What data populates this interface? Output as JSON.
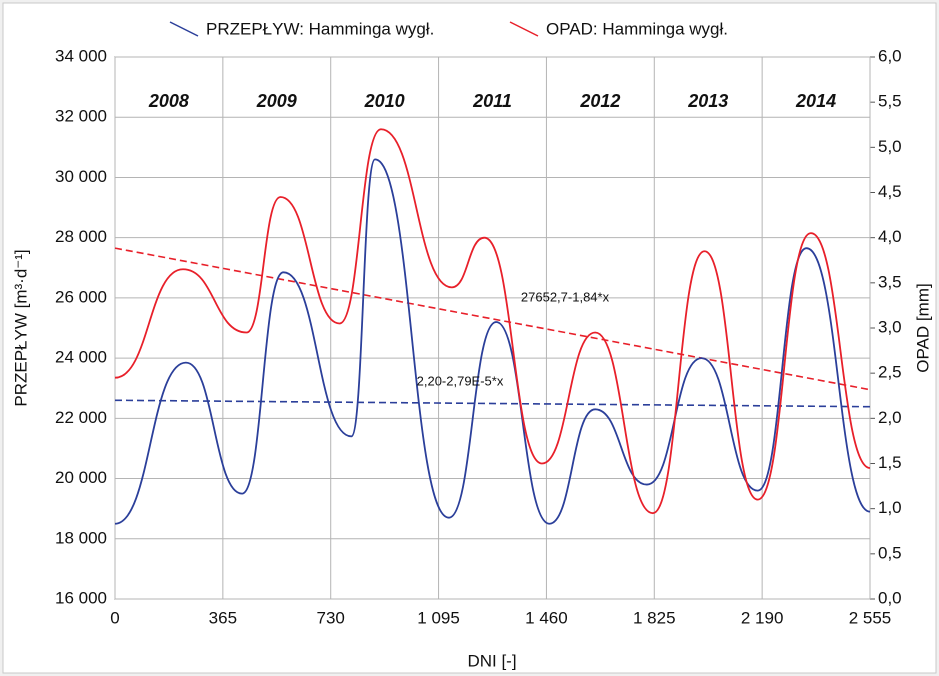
{
  "chart_data": {
    "type": "line",
    "xlabel": "DNI [-]",
    "ylabel": "PRZEPŁYW [m³·d⁻¹]",
    "y2label": "OPAD [mm]",
    "xlim": [
      0,
      2555
    ],
    "xticks": [
      0,
      365,
      730,
      {
        "value": 1095,
        "label": "1 095"
      },
      {
        "value": 1460,
        "label": "1 460"
      },
      {
        "value": 1825,
        "label": "1 825"
      },
      {
        "value": 2190,
        "label": "2 190"
      },
      {
        "value": 2555,
        "label": "2 555"
      }
    ],
    "ylim": [
      16000,
      34000
    ],
    "yticks": [
      {
        "value": 16000,
        "label": "16 000"
      },
      {
        "value": 18000,
        "label": "18 000"
      },
      {
        "value": 20000,
        "label": "20 000"
      },
      {
        "value": 22000,
        "label": "22 000"
      },
      {
        "value": 24000,
        "label": "24 000"
      },
      {
        "value": 26000,
        "label": "26 000"
      },
      {
        "value": 28000,
        "label": "28 000"
      },
      {
        "value": 30000,
        "label": "30 000"
      },
      {
        "value": 32000,
        "label": "32 000"
      },
      {
        "value": 34000,
        "label": "34 000"
      }
    ],
    "y2lim": [
      0,
      6
    ],
    "y2ticks": [
      {
        "value": 0,
        "label": "0,0"
      },
      {
        "value": 0.5,
        "label": "0,5"
      },
      {
        "value": 1,
        "label": "1,0"
      },
      {
        "value": 1.5,
        "label": "1,5"
      },
      {
        "value": 2,
        "label": "2,0"
      },
      {
        "value": 2.5,
        "label": "2,5"
      },
      {
        "value": 3,
        "label": "3,0"
      },
      {
        "value": 3.5,
        "label": "3,5"
      },
      {
        "value": 4,
        "label": "4,0"
      },
      {
        "value": 4.5,
        "label": "4,5"
      },
      {
        "value": 5,
        "label": "5,0"
      },
      {
        "value": 5.5,
        "label": "5,5"
      },
      {
        "value": 6,
        "label": "6,0"
      }
    ],
    "grid": true,
    "year_labels": [
      "2008",
      "2009",
      "2010",
      "2011",
      "2012",
      "2013",
      "2014"
    ],
    "series": [
      {
        "name": "PRZEPŁYW: Hamminga wygł.",
        "color": "#2b3f9a",
        "x": [
          0,
          240,
          430,
          570,
          800,
          880,
          1130,
          1290,
          1470,
          1625,
          1800,
          1985,
          2175,
          2340,
          2555
        ],
        "values": [
          18500,
          23850,
          19500,
          26850,
          21400,
          30600,
          18700,
          25200,
          18500,
          22300,
          19800,
          24000,
          19600,
          27650,
          18900
        ]
      },
      {
        "name": "OPAD: Hamminga wygł.",
        "color": "#e8202a",
        "axis": "y2",
        "x": [
          0,
          230,
          445,
          560,
          760,
          900,
          1140,
          1250,
          1445,
          1625,
          1820,
          1995,
          2175,
          2355,
          2555
        ],
        "values": [
          2.45,
          3.65,
          2.95,
          4.45,
          3.05,
          5.2,
          3.45,
          4.0,
          1.5,
          2.95,
          0.95,
          3.85,
          1.1,
          4.05,
          1.45
        ]
      }
    ],
    "trend_lines": [
      {
        "label": "27652,7-1,84*x",
        "color": "#e8202a",
        "x": [
          0,
          2555
        ],
        "values": [
          27652.7,
          22951.5
        ]
      },
      {
        "label": "2,20-2,79E-5*x",
        "color": "#2b3f9a",
        "axis": "y2",
        "x": [
          0,
          2555
        ],
        "values": [
          2.2,
          2.1287
        ]
      }
    ]
  }
}
